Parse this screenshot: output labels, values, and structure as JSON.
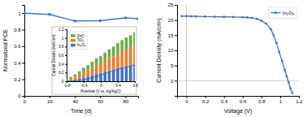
{
  "chart_data": [
    {
      "type": "line",
      "x": [
        0,
        20,
        40,
        60,
        80,
        90
      ],
      "values": [
        1.0,
        0.985,
        0.905,
        0.908,
        0.942,
        0.932
      ],
      "color": "#4472c4",
      "marker": "square",
      "xlabel": "Time (d)",
      "ylabel": "Normalized PCE",
      "xlim": [
        0,
        90
      ],
      "ylim": [
        0.0,
        1.1
      ],
      "xticks": [
        0,
        20,
        40,
        60,
        80
      ],
      "yticks": [
        0.0,
        0.2,
        0.4,
        0.6,
        0.8,
        1.0
      ]
    },
    {
      "type": "bar",
      "stacked": true,
      "x": [
        -0.8,
        -0.7,
        -0.6,
        -0.5,
        -0.4,
        -0.3,
        -0.2,
        -0.1,
        0.0,
        0.1,
        0.2,
        0.3,
        0.4,
        0.5,
        0.6,
        0.7,
        0.8
      ],
      "series": [
        {
          "name": "In₂O₃",
          "color": "#4472c4",
          "values": [
            0.01,
            0.02,
            0.04,
            0.06,
            0.09,
            0.11,
            0.14,
            0.17,
            0.19,
            0.22,
            0.25,
            0.27,
            0.3,
            0.32,
            0.35,
            0.37,
            0.39
          ]
        },
        {
          "name": "TiO₂",
          "color": "#ed7d31",
          "values": [
            0.02,
            0.04,
            0.06,
            0.09,
            0.12,
            0.14,
            0.17,
            0.2,
            0.22,
            0.25,
            0.28,
            0.3,
            0.33,
            0.36,
            0.38,
            0.4,
            0.43
          ]
        },
        {
          "name": "ZnO",
          "color": "#70ad47",
          "values": [
            0.02,
            0.04,
            0.06,
            0.08,
            0.1,
            0.12,
            0.14,
            0.16,
            0.17,
            0.19,
            0.21,
            0.23,
            0.25,
            0.27,
            0.28,
            0.29,
            0.31
          ]
        },
        {
          "type": "line",
          "color": "#4472c4",
          "values": [
            0.005,
            0.008,
            0.012,
            0.02,
            0.035,
            0.055,
            0.08,
            0.11,
            0.14,
            0.175,
            0.21,
            0.245,
            0.275,
            0.305,
            0.33,
            0.355,
            0.38
          ]
        }
      ],
      "xlabel": "Potential (V vs. Ag/AgCl)",
      "ylabel": "Current Density (mA/cm²)",
      "xlim": [
        -0.8,
        0.8
      ],
      "ylim": [
        0.0,
        1.2
      ],
      "xticks": [
        -0.8,
        -0.4,
        0,
        0.4,
        0.8
      ],
      "yticks": [
        0.0,
        0.2,
        0.4,
        0.6,
        0.8,
        1.0,
        1.2
      ],
      "legend": "upper left"
    },
    {
      "type": "line",
      "x": [
        -0.05,
        0.0,
        0.05,
        0.1,
        0.2,
        0.3,
        0.4,
        0.5,
        0.6,
        0.65,
        0.7,
        0.75,
        0.8,
        0.85,
        0.9,
        0.93,
        0.96,
        0.99,
        1.02,
        1.05,
        1.07,
        1.09,
        1.11,
        1.13
      ],
      "series": [
        {
          "name": "In₂O₃",
          "color": "#4472c4",
          "marker": "square",
          "values": [
            21.3,
            21.3,
            21.25,
            21.2,
            21.15,
            21.1,
            21.05,
            21.0,
            20.95,
            20.85,
            20.7,
            20.4,
            19.8,
            18.8,
            17.0,
            15.0,
            12.5,
            9.5,
            6.5,
            3.5,
            1.5,
            -0.5,
            -2.5,
            -4.0
          ]
        }
      ],
      "xlabel": "Voltage (V)",
      "ylabel": "Current Density (mA/cm²)",
      "xlim": [
        -0.1,
        1.2
      ],
      "ylim": [
        -5,
        25
      ],
      "xticks": [
        0.0,
        0.2,
        0.4,
        0.6,
        0.8,
        1.0,
        1.2
      ],
      "yticks": [
        0,
        5,
        10,
        15,
        20,
        25
      ],
      "legend": "upper right"
    }
  ]
}
